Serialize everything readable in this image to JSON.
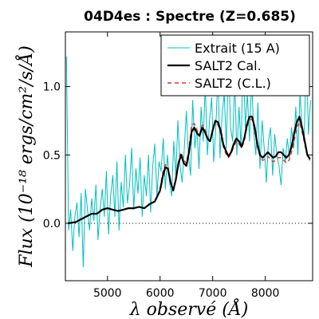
{
  "chart_data": {
    "type": "line",
    "title": "04D4es : Spectre (Z=0.685)",
    "xlabel": "λ observé (Å)",
    "ylabel": "Flux (10⁻¹⁸ ergs/cm²/s/Å)",
    "xlim": [
      4200,
      8900
    ],
    "ylim": [
      -0.42,
      1.4
    ],
    "xticks": [
      "5000",
      "6000",
      "7000",
      "8000"
    ],
    "yticks": [
      "0.0",
      "0.5",
      "1.0"
    ],
    "xtick_values": [
      5000,
      6000,
      7000,
      8000
    ],
    "ytick_values": [
      0.0,
      0.5,
      1.0
    ],
    "reference_line": {
      "y": 0.0,
      "style": "dotted"
    },
    "legend": {
      "position": "top-right"
    },
    "series": [
      {
        "name": "Extrait (15 A)",
        "color": "#00bfbf",
        "style": "line",
        "x": [
          4220,
          4260,
          4300,
          4340,
          4380,
          4420,
          4460,
          4500,
          4540,
          4580,
          4620,
          4660,
          4700,
          4740,
          4780,
          4820,
          4860,
          4900,
          4940,
          4980,
          5020,
          5060,
          5100,
          5140,
          5180,
          5220,
          5260,
          5300,
          5340,
          5380,
          5420,
          5460,
          5500,
          5540,
          5580,
          5620,
          5660,
          5700,
          5740,
          5780,
          5820,
          5860,
          5900,
          5940,
          5980,
          6020,
          6060,
          6100,
          6140,
          6180,
          6220,
          6260,
          6300,
          6340,
          6380,
          6420,
          6460,
          6500,
          6540,
          6580,
          6620,
          6660,
          6700,
          6740,
          6780,
          6820,
          6860,
          6900,
          6940,
          6980,
          7020,
          7060,
          7100,
          7140,
          7180,
          7220,
          7260,
          7300,
          7340,
          7380,
          7420,
          7460,
          7500,
          7540,
          7580,
          7620,
          7660,
          7700,
          7740,
          7780,
          7820,
          7860,
          7900,
          7940,
          7980,
          8020,
          8060,
          8100,
          8140,
          8180,
          8220,
          8260,
          8300,
          8340,
          8380,
          8420,
          8460,
          8500,
          8540,
          8580,
          8620,
          8660,
          8700,
          8740,
          8780,
          8820,
          8860
        ],
        "y": [
          1.22,
          -0.05,
          0.1,
          -0.2,
          0.05,
          0.15,
          -0.1,
          0.22,
          -0.32,
          0.25,
          0.1,
          -0.05,
          0.18,
          0.02,
          0.28,
          -0.12,
          0.1,
          0.25,
          0.05,
          0.38,
          -0.08,
          0.2,
          0.35,
          0.05,
          0.45,
          -0.05,
          0.3,
          0.12,
          0.5,
          0.15,
          0.28,
          0.55,
          0.1,
          0.4,
          0.22,
          0.48,
          0.05,
          0.35,
          0.2,
          0.5,
          0.08,
          0.42,
          0.58,
          0.2,
          0.45,
          0.38,
          0.62,
          0.25,
          0.5,
          0.3,
          0.2,
          0.6,
          0.35,
          0.75,
          0.42,
          0.3,
          0.55,
          0.82,
          0.5,
          0.35,
          0.9,
          0.55,
          0.7,
          0.4,
          0.85,
          0.6,
          1.02,
          0.5,
          0.75,
          0.92,
          0.45,
          0.7,
          1.1,
          0.48,
          0.8,
          0.95,
          0.55,
          1.2,
          0.7,
          0.6,
          1.05,
          0.5,
          0.85,
          0.55,
          1.25,
          0.7,
          0.95,
          0.6,
          1.05,
          0.68,
          0.5,
          0.88,
          0.4,
          0.75,
          0.55,
          0.3,
          0.6,
          0.7,
          0.35,
          0.65,
          0.5,
          0.42,
          0.28,
          0.55,
          0.45,
          0.62,
          0.48,
          0.7,
          0.55,
          0.85,
          0.5,
          0.95,
          0.7,
          0.6,
          1.28,
          0.65,
          0.9
        ]
      },
      {
        "name": "SALT2 Cal.",
        "color": "#000000",
        "style": "line",
        "x": [
          4250,
          4400,
          4500,
          4600,
          4700,
          4800,
          4900,
          5000,
          5100,
          5200,
          5300,
          5400,
          5500,
          5600,
          5700,
          5800,
          5900,
          5950,
          6000,
          6050,
          6100,
          6150,
          6200,
          6250,
          6300,
          6350,
          6400,
          6450,
          6500,
          6550,
          6600,
          6650,
          6700,
          6750,
          6800,
          6850,
          6900,
          6950,
          7000,
          7050,
          7100,
          7150,
          7200,
          7250,
          7300,
          7350,
          7400,
          7450,
          7500,
          7550,
          7600,
          7650,
          7700,
          7750,
          7800,
          7850,
          7900,
          7950,
          8000,
          8050,
          8100,
          8150,
          8200,
          8250,
          8300,
          8350,
          8400,
          8450,
          8500,
          8550,
          8600,
          8650,
          8700,
          8750,
          8800,
          8850
        ],
        "y": [
          0.0,
          0.01,
          0.03,
          0.05,
          0.07,
          0.07,
          0.1,
          0.11,
          0.1,
          0.09,
          0.1,
          0.11,
          0.11,
          0.12,
          0.11,
          0.14,
          0.16,
          0.2,
          0.24,
          0.34,
          0.41,
          0.4,
          0.3,
          0.24,
          0.32,
          0.44,
          0.5,
          0.44,
          0.42,
          0.52,
          0.67,
          0.7,
          0.66,
          0.64,
          0.7,
          0.67,
          0.62,
          0.6,
          0.68,
          0.75,
          0.74,
          0.68,
          0.58,
          0.53,
          0.49,
          0.52,
          0.58,
          0.62,
          0.6,
          0.56,
          0.62,
          0.72,
          0.78,
          0.78,
          0.7,
          0.58,
          0.5,
          0.48,
          0.5,
          0.52,
          0.5,
          0.48,
          0.49,
          0.52,
          0.52,
          0.5,
          0.48,
          0.5,
          0.56,
          0.66,
          0.74,
          0.78,
          0.7,
          0.6,
          0.5,
          0.47
        ]
      },
      {
        "name": "SALT2 (C.L.)",
        "color": "#e03030",
        "style": "dashed",
        "x": [
          4250,
          4400,
          4500,
          4600,
          4700,
          4800,
          4900,
          5000,
          5100,
          5200,
          5300,
          5400,
          5500,
          5600,
          5700,
          5800,
          5900,
          5950,
          6000,
          6050,
          6100,
          6150,
          6200,
          6250,
          6300,
          6350,
          6400,
          6450,
          6500,
          6550,
          6600,
          6650,
          6700,
          6750,
          6800,
          6850,
          6900,
          6950,
          7000,
          7050,
          7100,
          7150,
          7200,
          7250,
          7300,
          7350,
          7400,
          7450,
          7500,
          7550,
          7600,
          7650,
          7700,
          7750,
          7800,
          7850,
          7900,
          7950,
          8000,
          8050,
          8100,
          8150,
          8200,
          8250,
          8300,
          8350,
          8400,
          8450,
          8500,
          8550,
          8600,
          8650,
          8700,
          8750,
          8800,
          8850
        ],
        "y": [
          0.0,
          0.01,
          0.03,
          0.05,
          0.07,
          0.07,
          0.1,
          0.11,
          0.1,
          0.09,
          0.1,
          0.11,
          0.11,
          0.12,
          0.11,
          0.14,
          0.16,
          0.2,
          0.25,
          0.37,
          0.43,
          0.41,
          0.3,
          0.24,
          0.32,
          0.45,
          0.52,
          0.46,
          0.44,
          0.55,
          0.72,
          0.73,
          0.68,
          0.65,
          0.72,
          0.69,
          0.63,
          0.6,
          0.68,
          0.74,
          0.72,
          0.66,
          0.56,
          0.51,
          0.48,
          0.51,
          0.56,
          0.6,
          0.58,
          0.55,
          0.6,
          0.7,
          0.76,
          0.76,
          0.68,
          0.56,
          0.49,
          0.46,
          0.47,
          0.49,
          0.47,
          0.45,
          0.46,
          0.48,
          0.48,
          0.46,
          0.44,
          0.46,
          0.52,
          0.6,
          0.7,
          0.74,
          0.67,
          0.58,
          0.49,
          0.46
        ]
      }
    ]
  }
}
